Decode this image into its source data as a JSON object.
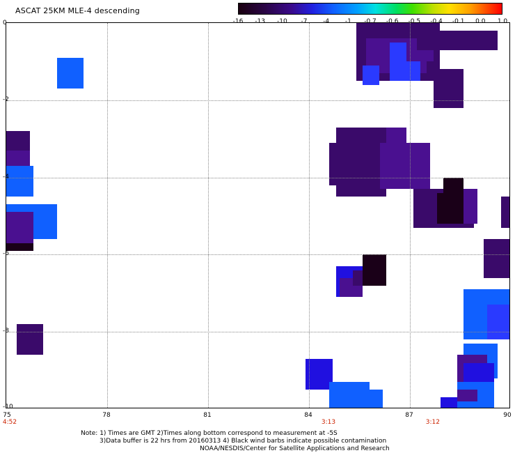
{
  "title": "ASCAT 25KM MLE-4 descending",
  "colorbar": {
    "labels": [
      "-16",
      "-13",
      "-10",
      "-7",
      "-4",
      "-1",
      "-0.7",
      "-0.6",
      "-0.5",
      "-0.4",
      "-0.1",
      "0.0",
      "1.0"
    ]
  },
  "axes": {
    "x_ticks": [
      "75",
      "78",
      "81",
      "84",
      "87",
      "90"
    ],
    "y_ticks": [
      "0",
      "-2",
      "-4",
      "-6",
      "-8",
      "-10"
    ]
  },
  "times": [
    {
      "lon": 75,
      "label": "4:52"
    },
    {
      "lon": 84.6,
      "label": "3:13"
    },
    {
      "lon": 87.7,
      "label": "3:12"
    }
  ],
  "notes": {
    "line1": "Note: 1) Times are GMT 2)Times along bottom correspond to measurement at -5S",
    "line2": "3)Data buffer is 22 hrs from 20160313 4) Black wind barbs indicate possible contamination",
    "line3": "NOAA/NESDIS/Center for Satellite Applications and Research"
  },
  "colors": {
    "dark_purple": "#3a0a6a",
    "purple": "#4a1090",
    "black_purple": "#1a0018",
    "blue": "#2a3aff",
    "light_blue": "#1060ff",
    "deep_blue": "#2010e0"
  },
  "cells": [
    {
      "x0": 76.5,
      "y0": -0.9,
      "x1": 77.3,
      "y1": -1.7,
      "c": "light_blue"
    },
    {
      "x0": 85.4,
      "y0": 0.1,
      "x1": 87.9,
      "y1": -1.5,
      "c": "dark_purple"
    },
    {
      "x0": 85.7,
      "y0": -0.4,
      "x1": 87.5,
      "y1": -1.3,
      "c": "purple"
    },
    {
      "x0": 86.4,
      "y0": -0.5,
      "x1": 87.3,
      "y1": -1.5,
      "c": "blue"
    },
    {
      "x0": 86.9,
      "y0": -0.4,
      "x1": 87.7,
      "y1": -1.0,
      "c": "purple"
    },
    {
      "x0": 87.2,
      "y0": -0.2,
      "x1": 88.6,
      "y1": -0.7,
      "c": "dark_purple"
    },
    {
      "x0": 88.2,
      "y0": -0.2,
      "x1": 89.6,
      "y1": -0.7,
      "c": "dark_purple"
    },
    {
      "x0": 87.7,
      "y0": -1.2,
      "x1": 88.6,
      "y1": -2.2,
      "c": "dark_purple"
    },
    {
      "x0": 85.6,
      "y0": -1.1,
      "x1": 86.1,
      "y1": -1.6,
      "c": "blue"
    },
    {
      "x0": 75.0,
      "y0": -2.8,
      "x1": 75.7,
      "y1": -3.3,
      "c": "dark_purple"
    },
    {
      "x0": 75.0,
      "y0": -3.3,
      "x1": 75.7,
      "y1": -3.7,
      "c": "purple"
    },
    {
      "x0": 75.0,
      "y0": -3.7,
      "x1": 75.8,
      "y1": -4.5,
      "c": "light_blue"
    },
    {
      "x0": 75.0,
      "y0": -4.7,
      "x1": 76.5,
      "y1": -5.6,
      "c": "light_blue"
    },
    {
      "x0": 75.0,
      "y0": -4.9,
      "x1": 75.8,
      "y1": -5.7,
      "c": "purple"
    },
    {
      "x0": 75.0,
      "y0": -5.7,
      "x1": 75.8,
      "y1": -5.9,
      "c": "black_purple"
    },
    {
      "x0": 84.8,
      "y0": -2.7,
      "x1": 86.3,
      "y1": -4.5,
      "c": "dark_purple"
    },
    {
      "x0": 84.6,
      "y0": -3.1,
      "x1": 86.9,
      "y1": -4.2,
      "c": "dark_purple"
    },
    {
      "x0": 86.3,
      "y0": -2.7,
      "x1": 86.9,
      "y1": -4.2,
      "c": "purple"
    },
    {
      "x0": 86.1,
      "y0": -3.1,
      "x1": 87.6,
      "y1": -4.3,
      "c": "purple"
    },
    {
      "x0": 87.1,
      "y0": -4.3,
      "x1": 88.9,
      "y1": -5.3,
      "c": "dark_purple"
    },
    {
      "x0": 87.8,
      "y0": -4.4,
      "x1": 88.6,
      "y1": -5.2,
      "c": "black_purple"
    },
    {
      "x0": 88.0,
      "y0": -4.0,
      "x1": 88.6,
      "y1": -4.4,
      "c": "black_purple"
    },
    {
      "x0": 88.6,
      "y0": -4.3,
      "x1": 89.0,
      "y1": -5.2,
      "c": "purple"
    },
    {
      "x0": 89.7,
      "y0": -4.5,
      "x1": 90.0,
      "y1": -5.3,
      "c": "dark_purple"
    },
    {
      "x0": 89.2,
      "y0": -5.6,
      "x1": 90.0,
      "y1": -6.6,
      "c": "dark_purple"
    },
    {
      "x0": 84.8,
      "y0": -6.3,
      "x1": 85.6,
      "y1": -7.1,
      "c": "deep_blue"
    },
    {
      "x0": 84.9,
      "y0": -6.6,
      "x1": 85.6,
      "y1": -7.1,
      "c": "purple"
    },
    {
      "x0": 85.3,
      "y0": -6.4,
      "x1": 85.8,
      "y1": -6.8,
      "c": "dark_purple"
    },
    {
      "x0": 85.6,
      "y0": -6.0,
      "x1": 86.3,
      "y1": -6.8,
      "c": "black_purple"
    },
    {
      "x0": 88.6,
      "y0": -6.9,
      "x1": 90.0,
      "y1": -8.2,
      "c": "light_blue"
    },
    {
      "x0": 89.3,
      "y0": -7.3,
      "x1": 90.0,
      "y1": -8.2,
      "c": "blue"
    },
    {
      "x0": 75.3,
      "y0": -7.8,
      "x1": 76.1,
      "y1": -8.6,
      "c": "dark_purple"
    },
    {
      "x0": 83.9,
      "y0": -8.7,
      "x1": 84.7,
      "y1": -9.5,
      "c": "deep_blue"
    },
    {
      "x0": 84.6,
      "y0": -9.3,
      "x1": 85.8,
      "y1": -10.0,
      "c": "light_blue"
    },
    {
      "x0": 84.9,
      "y0": -9.5,
      "x1": 86.2,
      "y1": -10.1,
      "c": "light_blue"
    },
    {
      "x0": 88.6,
      "y0": -8.3,
      "x1": 89.6,
      "y1": -9.2,
      "c": "light_blue"
    },
    {
      "x0": 88.4,
      "y0": -8.6,
      "x1": 89.3,
      "y1": -9.4,
      "c": "purple"
    },
    {
      "x0": 88.6,
      "y0": -8.8,
      "x1": 89.5,
      "y1": -9.8,
      "c": "deep_blue"
    },
    {
      "x0": 88.4,
      "y0": -9.3,
      "x1": 89.5,
      "y1": -10.1,
      "c": "light_blue"
    },
    {
      "x0": 87.9,
      "y0": -9.7,
      "x1": 88.4,
      "y1": -10.1,
      "c": "deep_blue"
    },
    {
      "x0": 88.4,
      "y0": -9.5,
      "x1": 89.0,
      "y1": -9.8,
      "c": "purple"
    }
  ]
}
